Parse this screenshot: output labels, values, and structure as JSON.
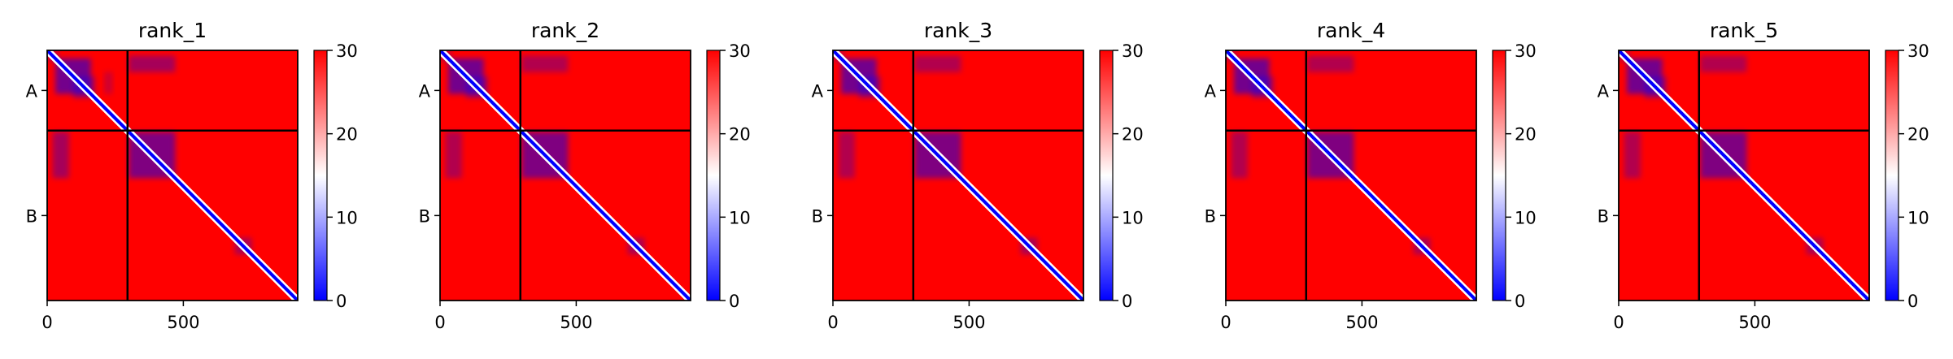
{
  "chart_data": [
    {
      "type": "heatmap",
      "title": "rank_1",
      "x_ticks": [
        0,
        500
      ],
      "x_range": [
        0,
        920
      ],
      "y_range": [
        0,
        920
      ],
      "y_tick_labels": [
        "A",
        "B"
      ],
      "chain_boundary": 295,
      "colorbar": {
        "range": [
          0,
          30
        ],
        "ticks": [
          0,
          10,
          20,
          30
        ],
        "colors": [
          "#0000ff",
          "#ffffff",
          "#ff0000"
        ]
      },
      "blue_regions": [
        {
          "x": [
            0,
            40
          ],
          "y": [
            0,
            40
          ],
          "level": 0.25
        },
        {
          "x": [
            30,
            160
          ],
          "y": [
            30,
            160
          ],
          "level": 0.55
        },
        {
          "x": [
            95,
            175
          ],
          "y": [
            95,
            175
          ],
          "level": 0.35
        },
        {
          "x": [
            210,
            240
          ],
          "y": [
            80,
            160
          ],
          "level": 0.2
        },
        {
          "x": [
            300,
            470
          ],
          "y": [
            20,
            80
          ],
          "level": 0.35
        },
        {
          "x": [
            20,
            80
          ],
          "y": [
            300,
            470
          ],
          "level": 0.35
        },
        {
          "x": [
            300,
            470
          ],
          "y": [
            300,
            470
          ],
          "level": 0.5
        },
        {
          "x": [
            690,
            750
          ],
          "y": [
            690,
            750
          ],
          "level": 0.35
        }
      ]
    },
    {
      "type": "heatmap",
      "title": "rank_2",
      "x_ticks": [
        0,
        500
      ],
      "x_range": [
        0,
        920
      ],
      "y_range": [
        0,
        920
      ],
      "y_tick_labels": [
        "A",
        "B"
      ],
      "chain_boundary": 295,
      "colorbar": {
        "range": [
          0,
          30
        ],
        "ticks": [
          0,
          10,
          20,
          30
        ],
        "colors": [
          "#0000ff",
          "#ffffff",
          "#ff0000"
        ]
      },
      "blue_regions": [
        {
          "x": [
            0,
            40
          ],
          "y": [
            0,
            40
          ],
          "level": 0.25
        },
        {
          "x": [
            30,
            160
          ],
          "y": [
            30,
            160
          ],
          "level": 0.55
        },
        {
          "x": [
            95,
            175
          ],
          "y": [
            95,
            175
          ],
          "level": 0.35
        },
        {
          "x": [
            300,
            470
          ],
          "y": [
            20,
            80
          ],
          "level": 0.3
        },
        {
          "x": [
            20,
            80
          ],
          "y": [
            300,
            470
          ],
          "level": 0.3
        },
        {
          "x": [
            300,
            470
          ],
          "y": [
            300,
            470
          ],
          "level": 0.5
        },
        {
          "x": [
            690,
            750
          ],
          "y": [
            690,
            750
          ],
          "level": 0.35
        }
      ]
    },
    {
      "type": "heatmap",
      "title": "rank_3",
      "x_ticks": [
        0,
        500
      ],
      "x_range": [
        0,
        920
      ],
      "y_range": [
        0,
        920
      ],
      "y_tick_labels": [
        "A",
        "B"
      ],
      "chain_boundary": 295,
      "colorbar": {
        "range": [
          0,
          30
        ],
        "ticks": [
          0,
          10,
          20,
          30
        ],
        "colors": [
          "#0000ff",
          "#ffffff",
          "#ff0000"
        ]
      },
      "blue_regions": [
        {
          "x": [
            0,
            40
          ],
          "y": [
            0,
            40
          ],
          "level": 0.25
        },
        {
          "x": [
            30,
            160
          ],
          "y": [
            30,
            160
          ],
          "level": 0.55
        },
        {
          "x": [
            95,
            175
          ],
          "y": [
            95,
            175
          ],
          "level": 0.35
        },
        {
          "x": [
            300,
            470
          ],
          "y": [
            20,
            80
          ],
          "level": 0.3
        },
        {
          "x": [
            20,
            80
          ],
          "y": [
            300,
            470
          ],
          "level": 0.3
        },
        {
          "x": [
            300,
            470
          ],
          "y": [
            300,
            470
          ],
          "level": 0.5
        },
        {
          "x": [
            690,
            750
          ],
          "y": [
            690,
            750
          ],
          "level": 0.35
        }
      ]
    },
    {
      "type": "heatmap",
      "title": "rank_4",
      "x_ticks": [
        0,
        500
      ],
      "x_range": [
        0,
        920
      ],
      "y_range": [
        0,
        920
      ],
      "y_tick_labels": [
        "A",
        "B"
      ],
      "chain_boundary": 295,
      "colorbar": {
        "range": [
          0,
          30
        ],
        "ticks": [
          0,
          10,
          20,
          30
        ],
        "colors": [
          "#0000ff",
          "#ffffff",
          "#ff0000"
        ]
      },
      "blue_regions": [
        {
          "x": [
            0,
            40
          ],
          "y": [
            0,
            40
          ],
          "level": 0.25
        },
        {
          "x": [
            30,
            160
          ],
          "y": [
            30,
            160
          ],
          "level": 0.55
        },
        {
          "x": [
            95,
            175
          ],
          "y": [
            95,
            175
          ],
          "level": 0.35
        },
        {
          "x": [
            300,
            470
          ],
          "y": [
            20,
            80
          ],
          "level": 0.3
        },
        {
          "x": [
            20,
            80
          ],
          "y": [
            300,
            470
          ],
          "level": 0.3
        },
        {
          "x": [
            300,
            470
          ],
          "y": [
            300,
            470
          ],
          "level": 0.5
        },
        {
          "x": [
            690,
            750
          ],
          "y": [
            690,
            750
          ],
          "level": 0.35
        }
      ]
    },
    {
      "type": "heatmap",
      "title": "rank_5",
      "x_ticks": [
        0,
        500
      ],
      "x_range": [
        0,
        920
      ],
      "y_range": [
        0,
        920
      ],
      "y_tick_labels": [
        "A",
        "B"
      ],
      "chain_boundary": 295,
      "colorbar": {
        "range": [
          0,
          30
        ],
        "ticks": [
          0,
          10,
          20,
          30
        ],
        "colors": [
          "#0000ff",
          "#ffffff",
          "#ff0000"
        ]
      },
      "blue_regions": [
        {
          "x": [
            0,
            40
          ],
          "y": [
            0,
            40
          ],
          "level": 0.25
        },
        {
          "x": [
            30,
            160
          ],
          "y": [
            30,
            160
          ],
          "level": 0.55
        },
        {
          "x": [
            95,
            175
          ],
          "y": [
            95,
            175
          ],
          "level": 0.35
        },
        {
          "x": [
            300,
            470
          ],
          "y": [
            20,
            80
          ],
          "level": 0.3
        },
        {
          "x": [
            20,
            80
          ],
          "y": [
            300,
            470
          ],
          "level": 0.3
        },
        {
          "x": [
            300,
            470
          ],
          "y": [
            300,
            470
          ],
          "level": 0.5
        },
        {
          "x": [
            690,
            750
          ],
          "y": [
            690,
            750
          ],
          "level": 0.35
        }
      ]
    }
  ]
}
